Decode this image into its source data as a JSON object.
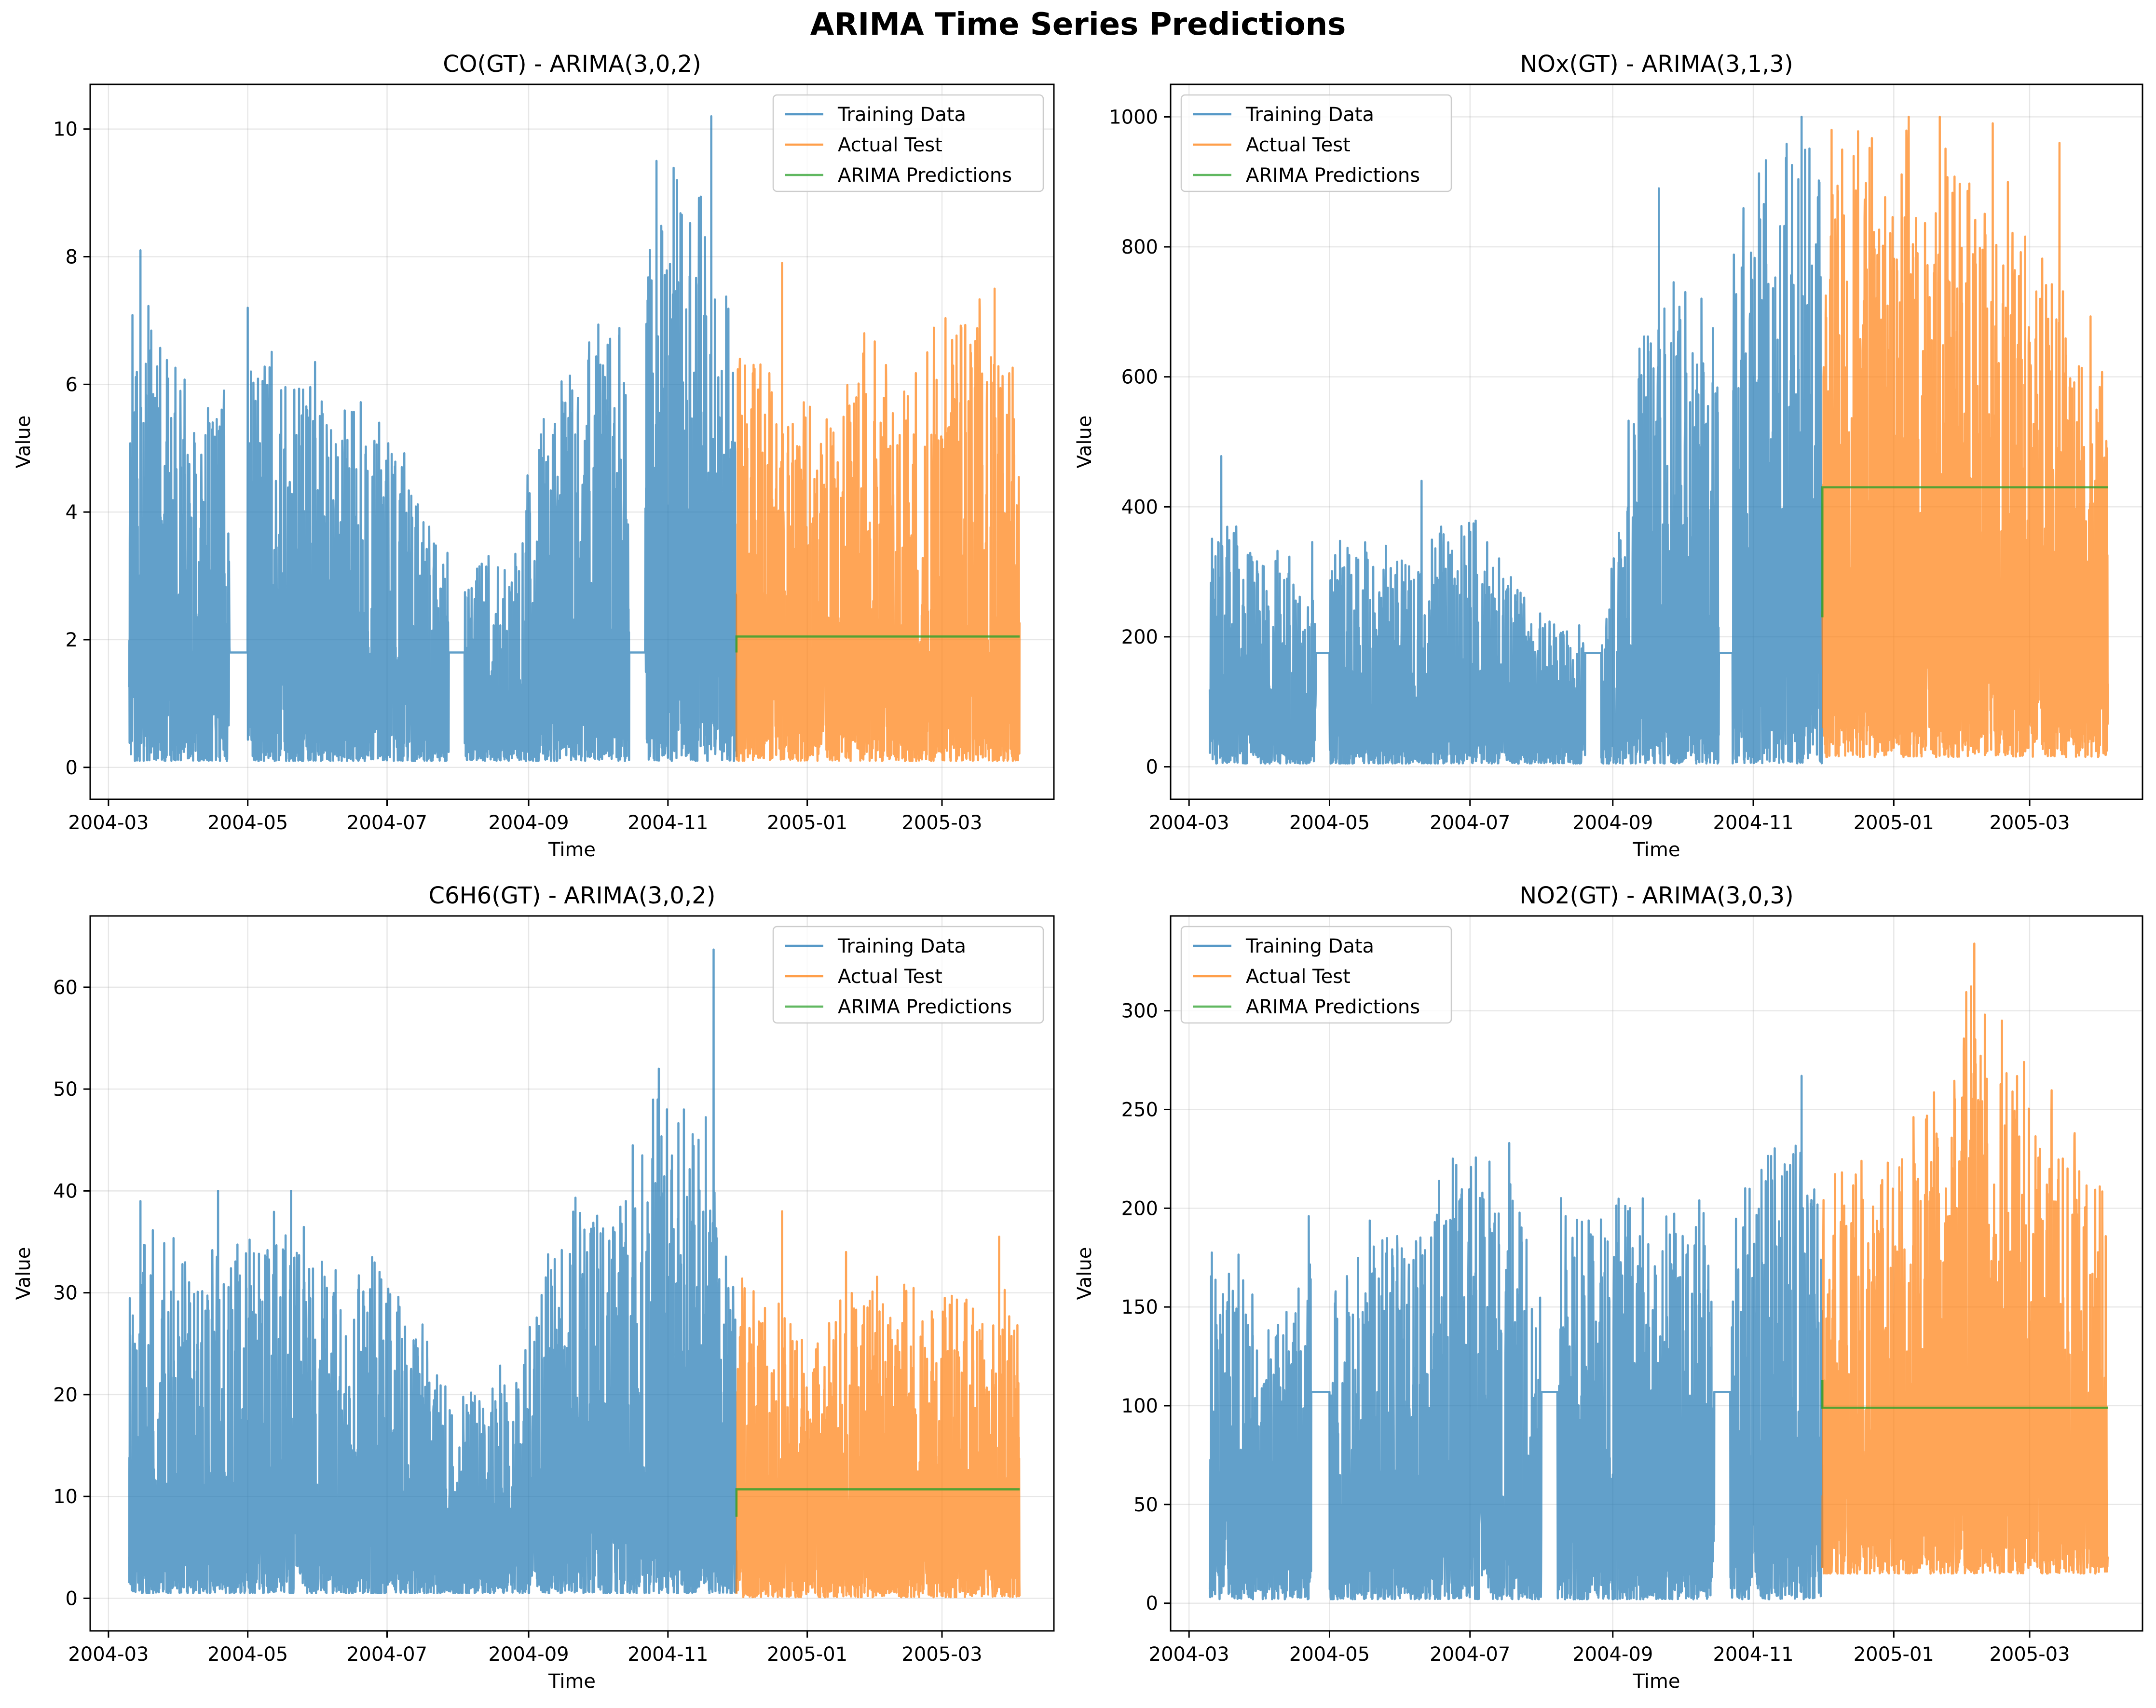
{
  "figure": {
    "title": "ARIMA Time Series Predictions"
  },
  "colors": {
    "training": "#1f77b4",
    "test": "#ff7f0e",
    "prediction": "#2ca02c"
  },
  "legend_labels": [
    "Training Data",
    "Actual Test",
    "ARIMA Predictions"
  ],
  "chart_data": [
    {
      "type": "line",
      "title": "CO(GT) - ARIMA(3,0,2)",
      "xlabel": "Time",
      "ylabel": "Value",
      "xlim": [
        "2004-02-22",
        "2005-04-19"
      ],
      "ylim": [
        -0.5,
        10.7
      ],
      "x_ticks": [
        "2004-03",
        "2004-05",
        "2004-07",
        "2004-09",
        "2004-11",
        "2005-01",
        "2005-03"
      ],
      "y_ticks": [
        0,
        2,
        4,
        6,
        8,
        10
      ],
      "grid": true,
      "legend": "top-right",
      "train_range": [
        "2004-03-10",
        "2004-12-01"
      ],
      "test_range": [
        "2004-12-01",
        "2005-04-04"
      ],
      "series": [
        {
          "name": "Training Data",
          "type": "noisy",
          "baseline": 1.8,
          "min": 0.1,
          "max": 10.2,
          "envelope": [
            [
              "2004-03-10",
              6.6
            ],
            [
              "2004-03-20",
              7.5
            ],
            [
              "2004-04-10",
              5.5
            ],
            [
              "2004-05-01",
              6.5
            ],
            [
              "2004-06-01",
              6.0
            ],
            [
              "2004-07-01",
              5.1
            ],
            [
              "2004-08-01",
              3.0
            ],
            [
              "2004-08-25",
              3.2
            ],
            [
              "2004-09-15",
              6.5
            ],
            [
              "2004-10-10",
              6.8
            ],
            [
              "2004-10-25",
              8.5
            ],
            [
              "2004-11-15",
              9.0
            ],
            [
              "2004-12-01",
              6.0
            ]
          ],
          "gaps": [
            [
              "2004-04-23",
              "2004-05-01"
            ],
            [
              "2004-07-28",
              "2004-08-04"
            ],
            [
              "2004-10-15",
              "2004-10-22"
            ]
          ],
          "peaks": [
            [
              "2004-03-15",
              8.1
            ],
            [
              "2004-05-01",
              7.2
            ],
            [
              "2004-10-27",
              9.5
            ],
            [
              "2004-11-05",
              9.2
            ],
            [
              "2004-11-20",
              10.2
            ]
          ]
        },
        {
          "name": "Actual Test",
          "type": "noisy",
          "min": 0.1,
          "max": 7.9,
          "envelope": [
            [
              "2004-12-01",
              6.5
            ],
            [
              "2004-12-20",
              6.0
            ],
            [
              "2005-01-10",
              5.5
            ],
            [
              "2005-01-25",
              6.5
            ],
            [
              "2005-02-15",
              5.8
            ],
            [
              "2005-03-10",
              7.0
            ],
            [
              "2005-04-04",
              6.5
            ]
          ],
          "gaps": [],
          "peaks": [
            [
              "2004-12-21",
              7.9
            ],
            [
              "2005-01-26",
              6.8
            ],
            [
              "2005-03-24",
              7.5
            ]
          ]
        },
        {
          "name": "ARIMA Predictions",
          "type": "flat",
          "start_value": 1.8,
          "value": 2.05
        }
      ]
    },
    {
      "type": "line",
      "title": "NOx(GT) - ARIMA(3,1,3)",
      "xlabel": "Time",
      "ylabel": "Value",
      "xlim": [
        "2004-02-22",
        "2005-04-19"
      ],
      "ylim": [
        -50,
        1050
      ],
      "x_ticks": [
        "2004-03",
        "2004-05",
        "2004-07",
        "2004-09",
        "2004-11",
        "2005-01",
        "2005-03"
      ],
      "y_ticks": [
        0,
        200,
        400,
        600,
        800,
        1000
      ],
      "grid": true,
      "legend": "top-left",
      "train_range": [
        "2004-03-10",
        "2004-12-01"
      ],
      "test_range": [
        "2004-12-01",
        "2005-04-04"
      ],
      "series": [
        {
          "name": "Training Data",
          "type": "noisy",
          "baseline": 175,
          "min": 5,
          "max": 1000,
          "envelope": [
            [
              "2004-03-10",
              380
            ],
            [
              "2004-04-01",
              320
            ],
            [
              "2004-05-01",
              340
            ],
            [
              "2004-06-01",
              330
            ],
            [
              "2004-07-01",
              390
            ],
            [
              "2004-08-01",
              220
            ],
            [
              "2004-08-28",
              200
            ],
            [
              "2004-09-10",
              600
            ],
            [
              "2004-09-25",
              750
            ],
            [
              "2004-10-15",
              650
            ],
            [
              "2004-10-25",
              850
            ],
            [
              "2004-11-15",
              950
            ],
            [
              "2004-12-01",
              980
            ]
          ],
          "gaps": [
            [
              "2004-04-25",
              "2004-05-01"
            ],
            [
              "2004-08-20",
              "2004-08-27"
            ],
            [
              "2004-10-17",
              "2004-10-23"
            ]
          ],
          "peaks": [
            [
              "2004-03-15",
              478
            ],
            [
              "2004-06-10",
              440
            ],
            [
              "2004-09-21",
              890
            ],
            [
              "2004-11-22",
              1000
            ]
          ]
        },
        {
          "name": "Actual Test",
          "type": "noisy",
          "min": 15,
          "max": 1000,
          "envelope": [
            [
              "2004-12-01",
              960
            ],
            [
              "2004-12-25",
              900
            ],
            [
              "2005-01-10",
              950
            ],
            [
              "2005-02-05",
              900
            ],
            [
              "2005-03-05",
              800
            ],
            [
              "2005-04-04",
              600
            ]
          ],
          "gaps": [],
          "peaks": [
            [
              "2004-12-05",
              980
            ],
            [
              "2005-01-21",
              1000
            ],
            [
              "2005-02-13",
              990
            ],
            [
              "2005-03-14",
              960
            ]
          ]
        },
        {
          "name": "ARIMA Predictions",
          "type": "flat",
          "start_value": 230,
          "value": 430
        }
      ]
    },
    {
      "type": "line",
      "title": "C6H6(GT) - ARIMA(3,0,2)",
      "xlabel": "Time",
      "ylabel": "Value",
      "xlim": [
        "2004-02-22",
        "2005-04-19"
      ],
      "ylim": [
        -3.2,
        67
      ],
      "x_ticks": [
        "2004-03",
        "2004-05",
        "2004-07",
        "2004-09",
        "2004-11",
        "2005-01",
        "2005-03"
      ],
      "y_ticks": [
        0,
        10,
        20,
        30,
        40,
        50,
        60
      ],
      "grid": true,
      "legend": "top-right",
      "train_range": [
        "2004-03-10",
        "2004-12-01"
      ],
      "test_range": [
        "2004-12-01",
        "2005-04-04"
      ],
      "series": [
        {
          "name": "Training Data",
          "type": "noisy",
          "baseline": 9.5,
          "min": 0.5,
          "max": 63.7,
          "envelope": [
            [
              "2004-03-10",
              32
            ],
            [
              "2004-03-20",
              36
            ],
            [
              "2004-04-10",
              30
            ],
            [
              "2004-05-01",
              37
            ],
            [
              "2004-06-01",
              33
            ],
            [
              "2004-07-01",
              32
            ],
            [
              "2004-08-01",
              20
            ],
            [
              "2004-08-25",
              22
            ],
            [
              "2004-09-15",
              35
            ],
            [
              "2004-10-10",
              40
            ],
            [
              "2004-10-25",
              45
            ],
            [
              "2004-11-15",
              47
            ],
            [
              "2004-12-01",
              30
            ]
          ],
          "gaps": [],
          "peaks": [
            [
              "2004-03-15",
              39
            ],
            [
              "2004-04-18",
              40
            ],
            [
              "2004-05-20",
              40
            ],
            [
              "2004-10-28",
              52
            ],
            [
              "2004-11-08",
              48
            ],
            [
              "2004-11-21",
              63.7
            ]
          ]
        },
        {
          "name": "Actual Test",
          "type": "noisy",
          "min": 0.1,
          "max": 38,
          "envelope": [
            [
              "2004-12-01",
              30
            ],
            [
              "2004-12-20",
              28
            ],
            [
              "2005-01-10",
              27
            ],
            [
              "2005-02-01",
              30
            ],
            [
              "2005-03-05",
              30
            ],
            [
              "2005-04-04",
              28
            ]
          ],
          "gaps": [],
          "peaks": [
            [
              "2004-12-21",
              38
            ],
            [
              "2005-01-18",
              34
            ],
            [
              "2005-03-26",
              35.5
            ]
          ]
        },
        {
          "name": "ARIMA Predictions",
          "type": "flat",
          "start_value": 8,
          "value": 10.7
        }
      ]
    },
    {
      "type": "line",
      "title": "NO2(GT) - ARIMA(3,0,3)",
      "xlabel": "Time",
      "ylabel": "Value",
      "xlim": [
        "2004-02-22",
        "2005-04-19"
      ],
      "ylim": [
        -14,
        348
      ],
      "x_ticks": [
        "2004-03",
        "2004-05",
        "2004-07",
        "2004-09",
        "2004-11",
        "2005-01",
        "2005-03"
      ],
      "y_ticks": [
        0,
        50,
        100,
        150,
        200,
        250,
        300
      ],
      "grid": true,
      "legend": "top-left",
      "train_range": [
        "2004-03-10",
        "2004-12-01"
      ],
      "test_range": [
        "2004-12-01",
        "2005-04-04"
      ],
      "series": [
        {
          "name": "Training Data",
          "type": "noisy",
          "baseline": 107,
          "min": 2,
          "max": 267,
          "envelope": [
            [
              "2004-03-10",
              180
            ],
            [
              "2004-04-01",
              150
            ],
            [
              "2004-05-01",
              170
            ],
            [
              "2004-06-01",
              190
            ],
            [
              "2004-07-01",
              215
            ],
            [
              "2004-08-01",
              185
            ],
            [
              "2004-09-01",
              200
            ],
            [
              "2004-10-01",
              200
            ],
            [
              "2004-10-20",
              190
            ],
            [
              "2004-11-15",
              240
            ],
            [
              "2004-12-01",
              200
            ]
          ],
          "gaps": [
            [
              "2004-04-23",
              "2004-05-01"
            ],
            [
              "2004-08-01",
              "2004-08-08"
            ],
            [
              "2004-10-15",
              "2004-10-22"
            ]
          ],
          "peaks": [
            [
              "2004-04-22",
              196
            ],
            [
              "2004-06-25",
              222
            ],
            [
              "2004-07-18",
              233
            ],
            [
              "2004-09-14",
              205
            ],
            [
              "2004-11-22",
              267
            ]
          ]
        },
        {
          "name": "Actual Test",
          "type": "noisy",
          "min": 15,
          "max": 334,
          "envelope": [
            [
              "2004-12-01",
              200
            ],
            [
              "2004-12-20",
              205
            ],
            [
              "2005-01-15",
              240
            ],
            [
              "2005-02-05",
              300
            ],
            [
              "2005-02-25",
              260
            ],
            [
              "2005-03-20",
              230
            ],
            [
              "2005-04-04",
              190
            ]
          ],
          "gaps": [],
          "peaks": [
            [
              "2004-12-18",
              224
            ],
            [
              "2005-01-15",
              245
            ],
            [
              "2005-02-05",
              334
            ],
            [
              "2005-02-17",
              295
            ]
          ]
        },
        {
          "name": "ARIMA Predictions",
          "type": "flat",
          "start_value": 113,
          "value": 99
        }
      ]
    }
  ]
}
